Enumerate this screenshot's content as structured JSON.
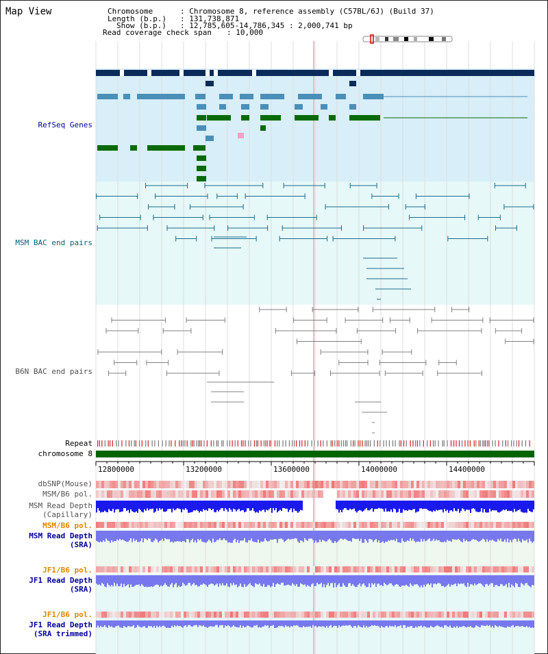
{
  "app": {
    "title": "Map View"
  },
  "info": {
    "chromosome_key": "Chromosome",
    "chromosome_value": ": Chromosome 8, reference assembly (C57BL/6J) (Build 37)",
    "length_key": "Length (b.p.)",
    "length_value": ": 131,738,871",
    "show_key": "Show (b.p.)",
    "show_value": ": 12,785,605-14,786,345 : 2,000,741 bp",
    "coverage_key": "Read coverage check span",
    "coverage_value": ": 10,000"
  },
  "tracks": {
    "refseq": "RefSeq Genes",
    "msm_bac": "MSM BAC end pairs",
    "b6n_bac": "B6N BAC end pairs",
    "repeat": "Repeat",
    "chromosome": "chromosome 8",
    "dbsnp": "dbSNP(Mouse)",
    "msm_b6_pol": "MSM/B6 pol.",
    "msm_read_cap_1": "MSM Read Depth",
    "msm_read_cap_2": "(Capillary)",
    "msm_b6_pol_2": "MSM/B6 pol.",
    "msm_read_sra_1": "MSM Read Depth",
    "msm_read_sra_2": "(SRA)",
    "jf1_b6_pol": "JF1/B6 pol.",
    "jf1_read_1": "JF1 Read Depth",
    "jf1_read_2": "(SRA)",
    "jf1_b6_pol_2": "JF1/B6 pol.",
    "jf1_trim_1": "JF1 Read Depth",
    "jf1_trim_2": "(SRA trimmed)"
  },
  "axis": {
    "ticks": [
      "12800000",
      "13200000",
      "13600000",
      "14000000",
      "14400000"
    ]
  },
  "colors": {
    "gene_dark": "#0a2a5a",
    "gene_mid": "#4a8fb8",
    "gene_green": "#0a6a0a",
    "msm_line": "#1a6a8a",
    "b6n_line": "#808080",
    "refseq_bg": "#d8eef8",
    "msm_bg": "#e6f8f8",
    "chromosome_green": "#006400",
    "label_blue": "#000099",
    "label_teal": "#006080",
    "label_orange": "#e08800",
    "depth_blue": "#1a1aee",
    "depth_light": "#7878ee"
  }
}
